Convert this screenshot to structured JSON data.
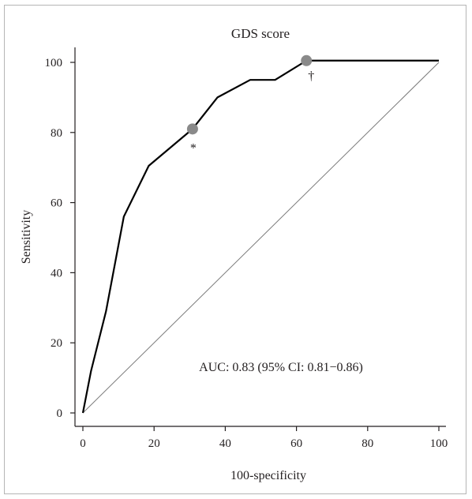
{
  "chart_data": {
    "type": "line",
    "title": "GDS score",
    "xlabel": "100-specificity",
    "ylabel": "Sensitivity",
    "xlim": [
      0,
      100
    ],
    "ylim": [
      0,
      100
    ],
    "xticks": [
      0,
      20,
      40,
      60,
      80,
      100
    ],
    "yticks": [
      0,
      20,
      40,
      60,
      80,
      100
    ],
    "grid": false,
    "legend": "none",
    "series": [
      {
        "x": [
          0,
          2.3,
          6.5,
          11.5,
          18.5,
          30.8,
          37.8,
          47,
          54,
          62.8,
          100
        ],
        "y": [
          0,
          12,
          29,
          56,
          70.5,
          81,
          90,
          95,
          95,
          100.5,
          100.5
        ]
      }
    ],
    "reference_line": {
      "x": [
        0,
        100
      ],
      "y": [
        0,
        100
      ]
    },
    "markers": [
      {
        "x": 30.8,
        "y": 81,
        "symbol": "*"
      },
      {
        "x": 62.8,
        "y": 100.5,
        "symbol": "†"
      }
    ],
    "annotation": "AUC: 0.83 (95% CI: 0.81−0.86)",
    "colors": {
      "curve": "#000000",
      "reference": "#7a7a7a",
      "marker": "#8a8a8a",
      "axis": "#231f20"
    }
  }
}
